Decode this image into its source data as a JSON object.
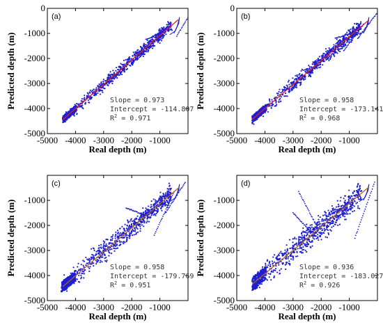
{
  "chart_data": [
    {
      "type": "scatter",
      "panel_label": "(a)",
      "xlabel": "Real depth (m)",
      "ylabel": "Predicted depth (m)",
      "xlim": [
        -5000,
        0
      ],
      "ylim": [
        -5000,
        0
      ],
      "x_ticks": [
        -5000,
        -4000,
        -3000,
        -2000,
        -1000
      ],
      "y_ticks": [
        -5000,
        -4000,
        -3000,
        -2000,
        -1000,
        0
      ],
      "x_tick_labels": [
        "-5000",
        "-4000",
        "-3000",
        "-2000",
        "-1000"
      ],
      "y_tick_labels": [
        "-5000",
        "-4000",
        "-3000",
        "-2000",
        "-1000",
        "0"
      ],
      "slope": 0.973,
      "intercept": -114.807,
      "r2": 0.971,
      "annotation": {
        "slope_text": "Slope = 0.973",
        "intercept_text": "Intercept = -114.807",
        "r2_prefix": "R",
        "r2_sup": "2",
        "r2_value": " = 0.971"
      },
      "point_color": "#1f1fd0",
      "fit_line_color": "#e02020",
      "fit_line_x": [
        -4450,
        -350
      ],
      "scatter_range": [
        -4450,
        -300
      ],
      "spread": 160,
      "excursions": [
        {
          "x": -1500,
          "y": -1250
        },
        {
          "x": -1800,
          "y": -2050
        },
        {
          "x": -400,
          "y": -1100
        }
      ]
    },
    {
      "type": "scatter",
      "panel_label": "(b)",
      "xlabel": "Real depth (m)",
      "ylabel": "Predicted depth (m)",
      "xlim": [
        -5000,
        0
      ],
      "ylim": [
        -5000,
        0
      ],
      "x_ticks": [
        -5000,
        -4000,
        -3000,
        -2000,
        -1000
      ],
      "y_ticks": [
        -5000,
        -4000,
        -3000,
        -2000,
        -1000,
        0
      ],
      "x_tick_labels": [
        "-5000",
        "-4000",
        "-3000",
        "-2000",
        "-1000"
      ],
      "y_tick_labels": [
        "-5000",
        "-4000",
        "-3000",
        "-2000",
        "-1000",
        "0"
      ],
      "slope": 0.958,
      "intercept": -173.141,
      "r2": 0.968,
      "annotation": {
        "slope_text": "Slope = 0.958",
        "intercept_text": "Intercept = -173.141",
        "r2_prefix": "R",
        "r2_sup": "2",
        "r2_value": " = 0.968"
      },
      "point_color": "#1f1fd0",
      "fit_line_color": "#e02020",
      "fit_line_x": [
        -4450,
        -300
      ],
      "scatter_range": [
        -4450,
        -300
      ],
      "spread": 170,
      "excursions": [
        {
          "x": -1500,
          "y": -1200
        },
        {
          "x": -1200,
          "y": -1700
        },
        {
          "x": -700,
          "y": -1200
        }
      ]
    },
    {
      "type": "scatter",
      "panel_label": "(c)",
      "xlabel": "Real depth (m)",
      "ylabel": "Predicted depth (m)",
      "xlim": [
        -5000,
        0
      ],
      "ylim": [
        -5000,
        0
      ],
      "x_ticks": [
        -5000,
        -4000,
        -3000,
        -2000,
        -1000
      ],
      "y_ticks": [
        -5000,
        -4000,
        -3000,
        -2000,
        -1000
      ],
      "x_tick_labels": [
        "-5000",
        "-4000",
        "-3000",
        "-2000",
        "-1000"
      ],
      "y_tick_labels": [
        "-5000",
        "-4000",
        "-3000",
        "-2000",
        "-1000"
      ],
      "slope": 0.958,
      "intercept": -179.769,
      "r2": 0.951,
      "annotation": {
        "slope_text": "Slope = 0.958",
        "intercept_text": "Intercept = -179.769",
        "r2_prefix": "R",
        "r2_sup": "2",
        "r2_value": " = 0.951"
      },
      "point_color": "#1f1fd0",
      "fit_line_color": "#b06020",
      "fit_line_x": [
        -4450,
        -300
      ],
      "scatter_range": [
        -4500,
        -300
      ],
      "spread": 260,
      "excursions": [
        {
          "x": -1200,
          "y": -2400
        },
        {
          "x": -2200,
          "y": -1300
        },
        {
          "x": -800,
          "y": -1500
        }
      ]
    },
    {
      "type": "scatter",
      "panel_label": "(d)",
      "xlabel": "Real depth (m)",
      "ylabel": "Predicted depth (m)",
      "xlim": [
        -5000,
        0
      ],
      "ylim": [
        -5000,
        0
      ],
      "x_ticks": [
        -5000,
        -4000,
        -3000,
        -2000,
        -1000
      ],
      "y_ticks": [
        -5000,
        -4000,
        -3000,
        -2000,
        -1000
      ],
      "x_tick_labels": [
        "-5000",
        "-4000",
        "-3000",
        "-2000",
        "-1000"
      ],
      "y_tick_labels": [
        "-5000",
        "-4000",
        "-3000",
        "-2000",
        "-1000"
      ],
      "slope": 0.936,
      "intercept": -183.027,
      "r2": 0.926,
      "annotation": {
        "slope_text": "Slope = 0.936",
        "intercept_text": "Intercept = -183.027",
        "r2_prefix": "R",
        "r2_sup": "2",
        "r2_value": " = 0.926"
      },
      "point_color": "#1f1fd0",
      "fit_line_color": "#b06020",
      "fit_line_x": [
        -4450,
        -300
      ],
      "scatter_range": [
        -4450,
        -300
      ],
      "spread": 330,
      "excursions": [
        {
          "x": -2800,
          "y": -650
        },
        {
          "x": -3000,
          "y": -1500
        },
        {
          "x": -800,
          "y": -2500
        }
      ]
    }
  ]
}
